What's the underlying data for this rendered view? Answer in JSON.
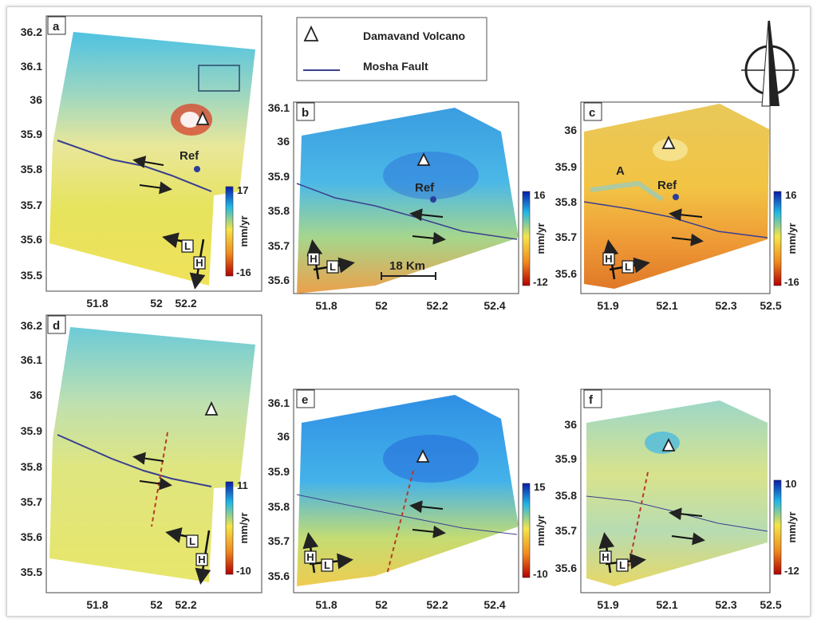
{
  "legend": {
    "items": [
      {
        "label": "Damavand Volcano",
        "symbol": "triangle-icon"
      },
      {
        "label": "Mosha Fault",
        "symbol": "line",
        "color": "#3a3f8f"
      }
    ]
  },
  "ref_label": "Ref",
  "scale_bar": "18 Km",
  "area_label": "A",
  "arrow_labels": {
    "heading": "H",
    "look": "L"
  },
  "colorbar_unit": "mm/yr",
  "palette": {
    "high": "#0a1aa8",
    "mid_high": "#1fb6e6",
    "mid": "#f4e54a",
    "mid_low": "#f08a1e",
    "low": "#b30000",
    "fault": "#3a3f8f"
  },
  "panels": [
    {
      "id": "a",
      "xticks": [
        "51.8",
        "52",
        "52.2"
      ],
      "yticks": [
        "36.2",
        "36.1",
        "36",
        "35.9",
        "35.8",
        "35.7",
        "35.6",
        "35.5"
      ],
      "cmax": "17",
      "cmin": "-16",
      "has_ref": true
    },
    {
      "id": "b",
      "xticks": [
        "51.8",
        "52",
        "52.2",
        "52.4"
      ],
      "yticks": [
        "36.1",
        "36",
        "35.9",
        "35.8",
        "35.7",
        "35.6"
      ],
      "cmax": "16",
      "cmin": "-12",
      "has_ref": true
    },
    {
      "id": "c",
      "xticks": [
        "51.9",
        "52.1",
        "52.3",
        "52.5"
      ],
      "yticks": [
        "36",
        "35.9",
        "35.8",
        "35.7",
        "35.6"
      ],
      "cmax": "16",
      "cmin": "-16",
      "has_ref": true
    },
    {
      "id": "d",
      "xticks": [
        "51.8",
        "52",
        "52.2"
      ],
      "yticks": [
        "36.2",
        "36.1",
        "36",
        "35.9",
        "35.8",
        "35.7",
        "35.6",
        "35.5"
      ],
      "cmax": "11",
      "cmin": "-10",
      "has_ref": false
    },
    {
      "id": "e",
      "xticks": [
        "51.8",
        "52",
        "52.2",
        "52.4"
      ],
      "yticks": [
        "36.1",
        "36",
        "35.9",
        "35.8",
        "35.7",
        "35.6"
      ],
      "cmax": "15",
      "cmin": "-10",
      "has_ref": false
    },
    {
      "id": "f",
      "xticks": [
        "51.9",
        "52.1",
        "52.3",
        "52.5"
      ],
      "yticks": [
        "36",
        "35.9",
        "35.8",
        "35.7",
        "35.6"
      ],
      "cmax": "10",
      "cmin": "-12",
      "has_ref": false
    }
  ]
}
